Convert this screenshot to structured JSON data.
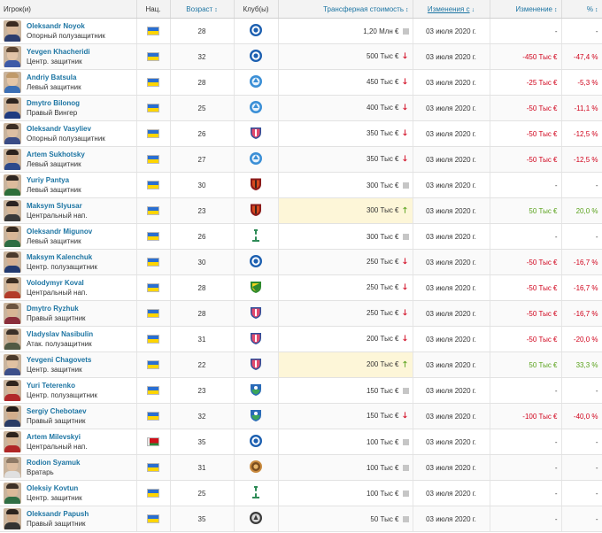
{
  "columns": {
    "player": "Игрок(и)",
    "nationality": "Нац.",
    "age": "Возраст",
    "club": "Клуб(ы)",
    "market_value": "Трансферная стоимость",
    "change_since": "Изменения с",
    "change": "Изменение",
    "percent": "%"
  },
  "sort_arrows": {
    "both": "↕",
    "down": "↓"
  },
  "trend_glyphs": {
    "down": "🡓",
    "up": "🡑",
    "same": ""
  },
  "players": [
    {
      "name": "Oleksandr Noyok",
      "position": "Опорный полузащитник",
      "nationality": "ua",
      "age": "28",
      "club_badge": "blue-round",
      "value": "1,20 Млн €",
      "trend": "same",
      "date": "03 июля 2020 г.",
      "change": "-",
      "percent": "-",
      "change_type": "neutral",
      "highlight": false,
      "skin": "#d9b899",
      "hair": "#3a2a20",
      "shirt": "#2b3d6e"
    },
    {
      "name": "Yevgen Khacheridi",
      "position": "Центр. защитник",
      "nationality": "ua",
      "age": "32",
      "club_badge": "blue-round",
      "value": "500 Тыс €",
      "trend": "down",
      "date": "03 июля 2020 г.",
      "change": "-450 Тыс €",
      "percent": "-47,4 %",
      "change_type": "neg",
      "highlight": false,
      "skin": "#e2c4a8",
      "hair": "#5b4533",
      "shirt": "#3d5aa8"
    },
    {
      "name": "Andriy Batsula",
      "position": "Левый защитник",
      "nationality": "ua",
      "age": "28",
      "club_badge": "light-blue",
      "value": "450 Тыс €",
      "trend": "down",
      "date": "03 июля 2020 г.",
      "change": "-25 Тыс €",
      "percent": "-5,3 %",
      "change_type": "neg",
      "highlight": false,
      "skin": "#e5c6a6",
      "hair": "#c09a6a",
      "shirt": "#3b6fb5"
    },
    {
      "name": "Dmytro Bilonog",
      "position": "Правый Вингер",
      "nationality": "ua",
      "age": "25",
      "club_badge": "light-blue",
      "value": "400 Тыс €",
      "trend": "down",
      "date": "03 июля 2020 г.",
      "change": "-50 Тыс €",
      "percent": "-11,1 %",
      "change_type": "neg",
      "highlight": false,
      "skin": "#d4b090",
      "hair": "#2e2520",
      "shirt": "#1f3b80"
    },
    {
      "name": "Oleksandr Vasyliev",
      "position": "Опорный полузащитник",
      "nationality": "ua",
      "age": "26",
      "club_badge": "shield-pink",
      "value": "350 Тыс €",
      "trend": "down",
      "date": "03 июля 2020 г.",
      "change": "-50 Тыс €",
      "percent": "-12,5 %",
      "change_type": "neg",
      "highlight": false,
      "skin": "#dcbfa3",
      "hair": "#3b2d24",
      "shirt": "#3a4c86"
    },
    {
      "name": "Artem Sukhotsky",
      "position": "Левый защитник",
      "nationality": "ua",
      "age": "27",
      "club_badge": "light-blue",
      "value": "350 Тыс €",
      "trend": "down",
      "date": "03 июля 2020 г.",
      "change": "-50 Тыс €",
      "percent": "-12,5 %",
      "change_type": "neg",
      "highlight": false,
      "skin": "#cfa987",
      "hair": "#2a211c",
      "shirt": "#2d4a8c"
    },
    {
      "name": "Yuriy Pantya",
      "position": "Левый защитник",
      "nationality": "ua",
      "age": "30",
      "club_badge": "shield-red",
      "value": "300 Тыс €",
      "trend": "same",
      "date": "03 июля 2020 г.",
      "change": "-",
      "percent": "-",
      "change_type": "neutral",
      "highlight": false,
      "skin": "#dcbb9c",
      "hair": "#2f2620",
      "shirt": "#2e6f3a"
    },
    {
      "name": "Maksym Slyusar",
      "position": "Центральный нап.",
      "nationality": "ua",
      "age": "23",
      "club_badge": "shield-red",
      "value": "300 Тыс €",
      "trend": "up",
      "date": "03 июля 2020 г.",
      "change": "50 Тыс €",
      "percent": "20,0 %",
      "change_type": "pos",
      "highlight": true,
      "skin": "#d8b796",
      "hair": "#2a2220",
      "shirt": "#3a3a3a"
    },
    {
      "name": "Oleksandr Migunov",
      "position": "Левый защитник",
      "nationality": "ua",
      "age": "26",
      "club_badge": "green-tower",
      "value": "300 Тыс €",
      "trend": "same",
      "date": "03 июля 2020 г.",
      "change": "-",
      "percent": "-",
      "change_type": "neutral",
      "highlight": false,
      "skin": "#d9b797",
      "hair": "#35291f",
      "shirt": "#2f6e44"
    },
    {
      "name": "Maksym Kalenchuk",
      "position": "Центр. полузащитник",
      "nationality": "ua",
      "age": "30",
      "club_badge": "blue-round",
      "value": "250 Тыс €",
      "trend": "down",
      "date": "03 июля 2020 г.",
      "change": "-50 Тыс €",
      "percent": "-16,7 %",
      "change_type": "neg",
      "highlight": false,
      "skin": "#d5b091",
      "hair": "#4a3a2c",
      "shirt": "#223a70"
    },
    {
      "name": "Volodymyr Koval",
      "position": "Центральный нап.",
      "nationality": "ua",
      "age": "28",
      "club_badge": "green-yellow",
      "value": "250 Тыс €",
      "trend": "down",
      "date": "03 июля 2020 г.",
      "change": "-50 Тыс €",
      "percent": "-16,7 %",
      "change_type": "neg",
      "highlight": false,
      "skin": "#dcb896",
      "hair": "#3b2d22",
      "shirt": "#b33c2a"
    },
    {
      "name": "Dmytro Ryzhuk",
      "position": "Правый защитник",
      "nationality": "ua",
      "age": "28",
      "club_badge": "shield-pink",
      "value": "250 Тыс €",
      "trend": "down",
      "date": "03 июля 2020 г.",
      "change": "-50 Тыс €",
      "percent": "-16,7 %",
      "change_type": "neg",
      "highlight": false,
      "skin": "#d7b595",
      "hair": "#6b5440",
      "shirt": "#8a2d3a"
    },
    {
      "name": "Vladyslav Nasibulin",
      "position": "Атак. полузащитник",
      "nationality": "ua",
      "age": "31",
      "club_badge": "shield-pink",
      "value": "200 Тыс €",
      "trend": "down",
      "date": "03 июля 2020 г.",
      "change": "-50 Тыс €",
      "percent": "-20,0 %",
      "change_type": "neg",
      "highlight": false,
      "skin": "#c9a684",
      "hair": "#3a3028",
      "shirt": "#505a44"
    },
    {
      "name": "Yevgeni Chagovets",
      "position": "Центр. защитник",
      "nationality": "ua",
      "age": "22",
      "club_badge": "shield-pink",
      "value": "200 Тыс €",
      "trend": "up",
      "date": "03 июля 2020 г.",
      "change": "50 Тыс €",
      "percent": "33,3 %",
      "change_type": "pos",
      "highlight": true,
      "skin": "#e0c1a2",
      "hair": "#4b3a2a",
      "shirt": "#3c4f8a"
    },
    {
      "name": "Yuri Teterenko",
      "position": "Центр. полузащитник",
      "nationality": "ua",
      "age": "23",
      "club_badge": "shield-blue-green",
      "value": "150 Тыс €",
      "trend": "same",
      "date": "03 июля 2020 г.",
      "change": "-",
      "percent": "-",
      "change_type": "neutral",
      "highlight": false,
      "skin": "#d9b694",
      "hair": "#2e241d",
      "shirt": "#b1282a"
    },
    {
      "name": "Sergiy Chebotaev",
      "position": "Правый защитник",
      "nationality": "ua",
      "age": "32",
      "club_badge": "shield-blue-green",
      "value": "150 Тыс €",
      "trend": "down",
      "date": "03 июля 2020 г.",
      "change": "-100 Тыс €",
      "percent": "-40,0 %",
      "change_type": "neg",
      "highlight": false,
      "skin": "#d2ad8c",
      "hair": "#221b18",
      "shirt": "#2a3c66"
    },
    {
      "name": "Artem Milevskyi",
      "position": "Центральный нап.",
      "nationality": "by",
      "age": "35",
      "club_badge": "blue-round",
      "value": "100 Тыс €",
      "trend": "same",
      "date": "03 июля 2020 г.",
      "change": "-",
      "percent": "-",
      "change_type": "neutral",
      "highlight": false,
      "skin": "#d6b392",
      "hair": "#2c231d",
      "shirt": "#b02626"
    },
    {
      "name": "Rodion Syamuk",
      "position": "Вратарь",
      "nationality": "ua",
      "age": "31",
      "club_badge": "orange-round",
      "value": "100 Тыс €",
      "trend": "same",
      "date": "03 июля 2020 г.",
      "change": "-",
      "percent": "-",
      "change_type": "neutral",
      "highlight": false,
      "skin": "#dcbda0",
      "hair": "#8f7a66",
      "shirt": "#e0e0e0"
    },
    {
      "name": "Oleksiy Kovtun",
      "position": "Центр. защитник",
      "nationality": "ua",
      "age": "25",
      "club_badge": "green-tower",
      "value": "100 Тыс €",
      "trend": "same",
      "date": "03 июля 2020 г.",
      "change": "-",
      "percent": "-",
      "change_type": "neutral",
      "highlight": false,
      "skin": "#dab999",
      "hair": "#3d3026",
      "shirt": "#2f6e44"
    },
    {
      "name": "Oleksandr Papush",
      "position": "Правый защитник",
      "nationality": "ua",
      "age": "35",
      "club_badge": "grey-round",
      "value": "50 Тыс €",
      "trend": "same",
      "date": "03 июля 2020 г.",
      "change": "-",
      "percent": "-",
      "change_type": "neutral",
      "highlight": false,
      "skin": "#cfa988",
      "hair": "#2b231e",
      "shirt": "#333333"
    }
  ]
}
